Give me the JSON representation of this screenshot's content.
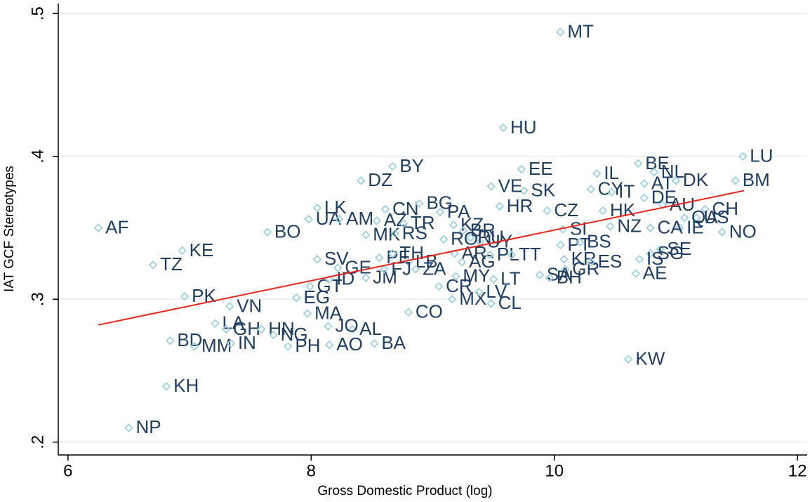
{
  "chart_data": {
    "type": "scatter",
    "x_label": "Gross Domestic Product (log)",
    "y_label": "IAT GCF Stereotypes",
    "xlim": [
      5.92,
      12.08
    ],
    "ylim": [
      0.191,
      0.507
    ],
    "xticks": [
      6,
      8,
      10,
      12
    ],
    "yticks": [
      {
        "value": 0.2,
        "label": ".2"
      },
      {
        "value": 0.3,
        "label": ".3"
      },
      {
        "value": 0.4,
        "label": ".4"
      },
      {
        "value": 0.5,
        "label": ".5"
      }
    ],
    "grid": true,
    "marker_color": "#9fd0e0",
    "label_color": "#1f3e62",
    "labels": [
      "MT",
      "HU",
      "LU",
      "BM",
      "BY",
      "DZ",
      "EE",
      "SK",
      "VE",
      "IL",
      "BE",
      "NL",
      "DK",
      "AT",
      "CY",
      "IT",
      "DE",
      "CZ",
      "HR",
      "CH",
      "AU",
      "US",
      "QA",
      "HK",
      "NZ",
      "SI",
      "NO",
      "IE",
      "CA",
      "LK",
      "UA",
      "AM",
      "BO",
      "AF",
      "KE",
      "TZ",
      "PK",
      "VN",
      "LA",
      "BD",
      "MM",
      "IN",
      "GH",
      "HN",
      "NG",
      "PH",
      "KH",
      "NP",
      "KW",
      "AO",
      "BA",
      "AL",
      "JO",
      "MA",
      "EG",
      "GT",
      "SV",
      "GE",
      "ID",
      "JM",
      "PE",
      "TH",
      "LB",
      "FJ",
      "ZA",
      "CO",
      "CR",
      "MX",
      "MY",
      "AR",
      "AG",
      "PL",
      "LT",
      "LV",
      "CL",
      "CN",
      "BG",
      "PA",
      "MK",
      "RS",
      "AZ",
      "TR",
      "KZ",
      "BR",
      "RO",
      "UY",
      "RU",
      "TT",
      "PT",
      "BS",
      "GR",
      "KR",
      "ES",
      "SA",
      "BH",
      "SE",
      "SG",
      "IS",
      "AE"
    ],
    "x": [
      10.05,
      9.58,
      11.55,
      11.49,
      8.67,
      8.41,
      9.73,
      9.75,
      9.48,
      10.35,
      10.69,
      10.82,
      11.0,
      10.74,
      10.3,
      10.47,
      10.74,
      9.94,
      9.55,
      11.24,
      10.89,
      11.17,
      11.07,
      10.4,
      10.46,
      10.07,
      11.38,
      11.03,
      10.79,
      8.05,
      7.98,
      8.23,
      7.64,
      6.25,
      6.94,
      6.7,
      6.96,
      7.33,
      7.21,
      6.84,
      7.04,
      7.34,
      7.3,
      7.59,
      7.69,
      7.81,
      6.81,
      6.5,
      10.61,
      8.15,
      8.52,
      8.34,
      8.14,
      7.97,
      7.88,
      7.99,
      8.05,
      8.22,
      8.15,
      8.45,
      8.56,
      8.67,
      8.8,
      8.6,
      8.86,
      8.8,
      9.05,
      9.16,
      9.19,
      9.18,
      9.24,
      9.47,
      9.5,
      9.38,
      9.48,
      8.61,
      8.89,
      9.06,
      8.45,
      8.69,
      8.54,
      8.76,
      9.17,
      9.25,
      9.09,
      9.39,
      9.31,
      9.65,
      10.05,
      10.21,
      10.09,
      10.08,
      10.3,
      9.88,
      9.96,
      10.87,
      10.79,
      10.7,
      10.67
    ],
    "y": [
      0.487,
      0.42,
      0.4,
      0.383,
      0.393,
      0.383,
      0.391,
      0.376,
      0.379,
      0.388,
      0.395,
      0.389,
      0.383,
      0.381,
      0.377,
      0.375,
      0.371,
      0.362,
      0.365,
      0.363,
      0.366,
      0.357,
      0.357,
      0.362,
      0.351,
      0.349,
      0.347,
      0.35,
      0.35,
      0.364,
      0.356,
      0.356,
      0.347,
      0.35,
      0.334,
      0.324,
      0.302,
      0.295,
      0.283,
      0.271,
      0.267,
      0.269,
      0.279,
      0.279,
      0.275,
      0.267,
      0.239,
      0.21,
      0.258,
      0.268,
      0.269,
      0.279,
      0.281,
      0.29,
      0.301,
      0.309,
      0.328,
      0.322,
      0.314,
      0.315,
      0.329,
      0.332,
      0.326,
      0.321,
      0.321,
      0.291,
      0.309,
      0.3,
      0.316,
      0.332,
      0.326,
      0.331,
      0.314,
      0.305,
      0.297,
      0.363,
      0.367,
      0.361,
      0.345,
      0.346,
      0.355,
      0.353,
      0.352,
      0.348,
      0.342,
      0.34,
      0.343,
      0.331,
      0.338,
      0.34,
      0.321,
      0.328,
      0.326,
      0.317,
      0.315,
      0.335,
      0.332,
      0.328,
      0.318
    ],
    "fit": {
      "x": [
        6.25,
        11.56
      ],
      "y": [
        0.282,
        0.376
      ],
      "color": "#e8251d"
    }
  }
}
